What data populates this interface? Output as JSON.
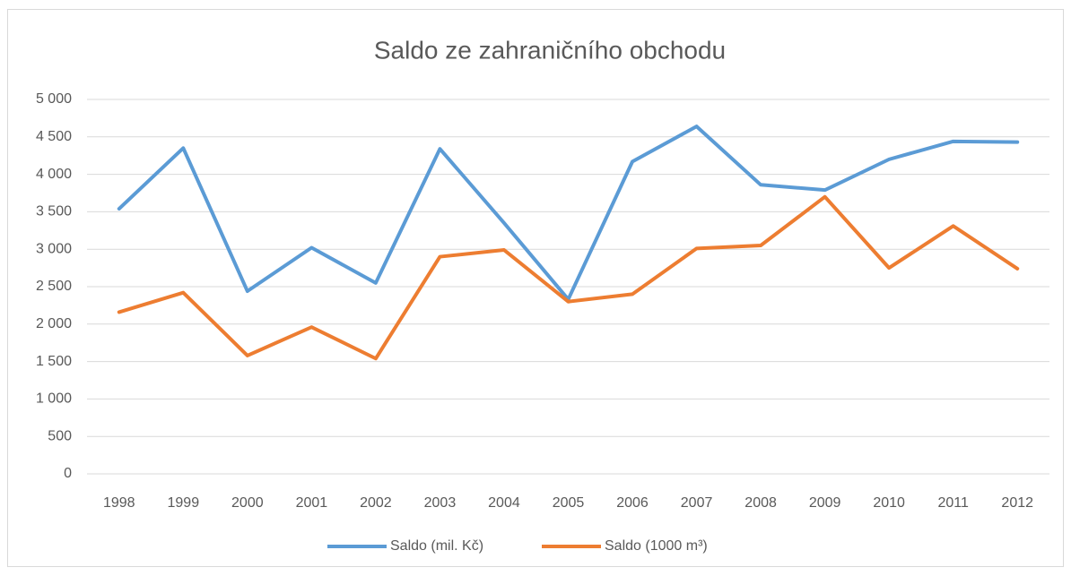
{
  "chart_data": {
    "type": "line",
    "title": "Saldo ze zahraničního obchodu",
    "categories": [
      "1998",
      "1999",
      "2000",
      "2001",
      "2002",
      "2003",
      "2004",
      "2005",
      "2006",
      "2007",
      "2008",
      "2009",
      "2010",
      "2011",
      "2012"
    ],
    "series": [
      {
        "name": "Saldo (mil. Kč)",
        "color": "#5b9bd5",
        "values": [
          3540,
          4350,
          2440,
          3020,
          2550,
          4340,
          3350,
          2330,
          4170,
          4640,
          3860,
          3790,
          4200,
          4440,
          4430
        ]
      },
      {
        "name": "Saldo (1000 m³)",
        "color": "#ed7d31",
        "values": [
          2160,
          2420,
          1580,
          1960,
          1540,
          2900,
          2990,
          2300,
          2400,
          3010,
          3050,
          3700,
          2750,
          3310,
          2740
        ]
      }
    ],
    "ylim": [
      0,
      5000
    ],
    "yticks": [
      0,
      500,
      {
        "value": 1000,
        "label": "1 000"
      },
      {
        "value": 1500,
        "label": "1 500"
      },
      {
        "value": 2000,
        "label": "2 000"
      },
      {
        "value": 2500,
        "label": "2 500"
      },
      {
        "value": 3000,
        "label": "3 000"
      },
      {
        "value": 3500,
        "label": "3 500"
      },
      {
        "value": 4000,
        "label": "4 000"
      },
      {
        "value": 4500,
        "label": "4 500"
      },
      {
        "value": 5000,
        "label": "5 000"
      }
    ],
    "grid": true,
    "legend": "bottom"
  }
}
